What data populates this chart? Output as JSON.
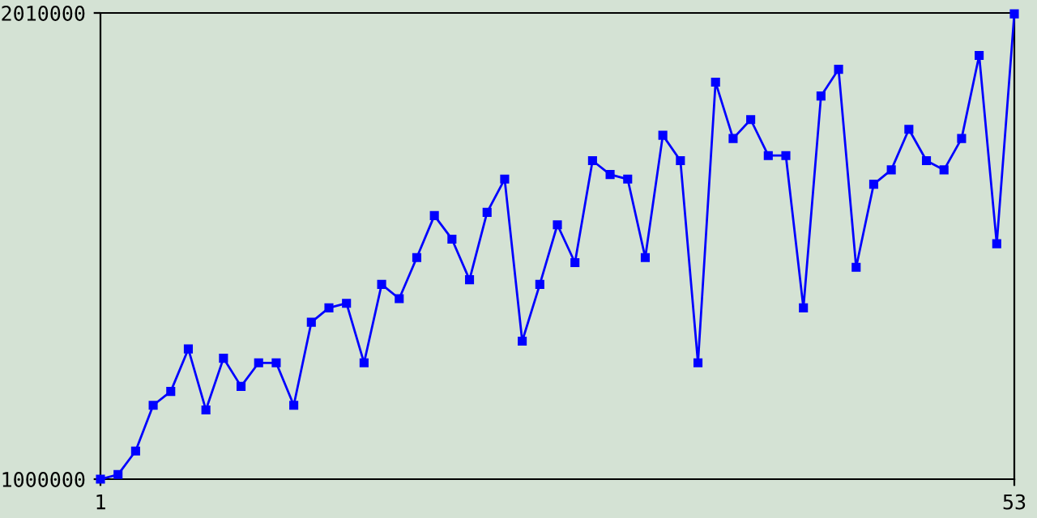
{
  "chart_data": {
    "type": "line",
    "x": [
      1,
      2,
      3,
      4,
      5,
      6,
      7,
      8,
      9,
      10,
      11,
      12,
      13,
      14,
      15,
      16,
      17,
      18,
      19,
      20,
      21,
      22,
      23,
      24,
      25,
      26,
      27,
      28,
      29,
      30,
      31,
      32,
      33,
      34,
      35,
      36,
      37,
      38,
      39,
      40,
      41,
      42,
      43,
      44,
      45,
      46,
      47,
      48,
      49,
      50,
      51,
      52,
      53
    ],
    "series": [
      {
        "color": "#0000ff",
        "values": [
          1000000,
          1010000,
          1061000,
          1160000,
          1190000,
          1282000,
          1150000,
          1262000,
          1201000,
          1252000,
          1252000,
          1160000,
          1340000,
          1371000,
          1381000,
          1252000,
          1422000,
          1391000,
          1480000,
          1571000,
          1520000,
          1432000,
          1578000,
          1650000,
          1299000,
          1422000,
          1551000,
          1469000,
          1690000,
          1660000,
          1650000,
          1480000,
          1745000,
          1690000,
          1252000,
          1860000,
          1738000,
          1779000,
          1701000,
          1701000,
          1371000,
          1830000,
          1888000,
          1459000,
          1639000,
          1670000,
          1758000,
          1690000,
          1670000,
          1738000,
          1918000,
          1510000,
          2008000
        ]
      }
    ],
    "xlim": [
      1,
      53
    ],
    "xticks": [
      1,
      53
    ],
    "ylim": [
      1000000,
      2010000
    ],
    "yticks": [
      1000000,
      2010000
    ],
    "marker": "square",
    "line_style": "solid",
    "grid": false
  }
}
